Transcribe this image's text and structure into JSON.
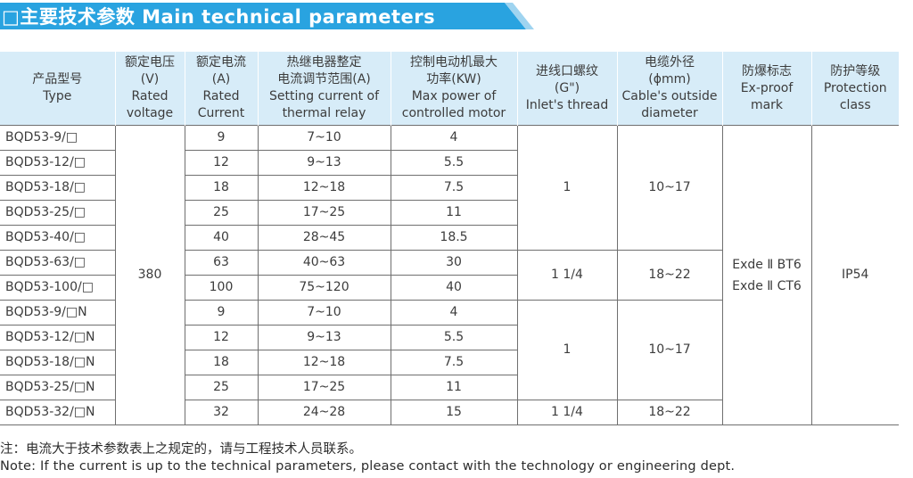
{
  "banner": {
    "title": "□主要技术参数 Main technical parameters",
    "color_main": "#29a3e0",
    "color_tail": "#9fd4f0"
  },
  "table": {
    "header_bg": "#d7ecf8",
    "headers": [
      [
        "产品型号",
        "Type"
      ],
      [
        "额定电压",
        "(V)",
        "Rated",
        "voltage"
      ],
      [
        "额定电流",
        "(A)",
        "Rated",
        "Current"
      ],
      [
        "热继电器整定",
        "电流调节范围(A)",
        "Setting current of",
        "thermal relay"
      ],
      [
        "控制电动机最大",
        "功率(KW)",
        "Max power of",
        "controlled motor"
      ],
      [
        "进线口螺纹",
        "(G\")",
        "Inlet's thread"
      ],
      [
        "电缆外径",
        "(ϕmm)",
        "Cable's outside",
        "diameter"
      ],
      [
        "防爆标志",
        "Ex-proof",
        "mark"
      ],
      [
        "防护等级",
        "Protection",
        "class"
      ]
    ],
    "rows": [
      {
        "type": "BQD53-9/□",
        "current": "9",
        "setting": "7~10",
        "power": "4"
      },
      {
        "type": "BQD53-12/□",
        "current": "12",
        "setting": "9~13",
        "power": "5.5"
      },
      {
        "type": "BQD53-18/□",
        "current": "18",
        "setting": "12~18",
        "power": "7.5"
      },
      {
        "type": "BQD53-25/□",
        "current": "25",
        "setting": "17~25",
        "power": "11"
      },
      {
        "type": "BQD53-40/□",
        "current": "40",
        "setting": "28~45",
        "power": "18.5"
      },
      {
        "type": "BQD53-63/□",
        "current": "63",
        "setting": "40~63",
        "power": "30"
      },
      {
        "type": "BQD53-100/□",
        "current": "100",
        "setting": "75~120",
        "power": "40"
      },
      {
        "type": "BQD53-9/□N",
        "current": "9",
        "setting": "7~10",
        "power": "4"
      },
      {
        "type": "BQD53-12/□N",
        "current": "12",
        "setting": "9~13",
        "power": "5.5"
      },
      {
        "type": "BQD53-18/□N",
        "current": "18",
        "setting": "12~18",
        "power": "7.5"
      },
      {
        "type": "BQD53-25/□N",
        "current": "25",
        "setting": "17~25",
        "power": "11"
      },
      {
        "type": "BQD53-32/□N",
        "current": "32",
        "setting": "24~28",
        "power": "15"
      }
    ],
    "voltage": "380",
    "thread_groups": [
      {
        "value": "1",
        "cable": "10~17"
      },
      {
        "value": "1 1/4",
        "cable": "18~22"
      },
      {
        "value": "1",
        "cable": "10~17"
      },
      {
        "value": "1 1/4",
        "cable": "18~22"
      }
    ],
    "exproof": [
      "Exde Ⅱ BT6",
      "Exde Ⅱ CT6"
    ],
    "protection": "IP54"
  },
  "notes": {
    "cn": "注：电流大于技术参数表上之规定的，请与工程技术人员联系。",
    "en": "Note: If the current is up to the technical parameters, please contact with the technology or engineering dept."
  }
}
